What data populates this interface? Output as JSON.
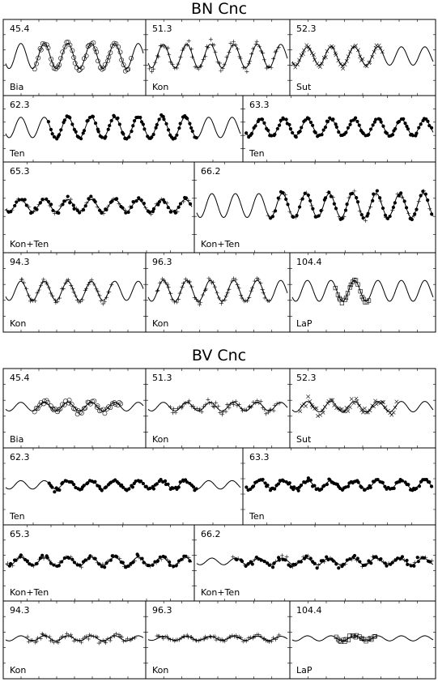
{
  "figures": [
    {
      "title": "BN Cnc",
      "panels": [
        {
          "label": "45.4",
          "observer": "Bia",
          "marker": "circle",
          "start": 0.2,
          "end": 0.92,
          "amp": 0.75,
          "scatter": 0.35
        },
        {
          "label": "51.3",
          "observer": "Kon",
          "marker": "plus",
          "start": 0.0,
          "end": 0.95,
          "amp": 0.7,
          "scatter": 0.45
        },
        {
          "label": "52.3",
          "observer": "Sut",
          "marker": "cross",
          "start": 0.0,
          "end": 0.65,
          "amp": 0.55,
          "scatter": 0.3
        },
        {
          "label": "62.3",
          "observer": "Ten",
          "marker": "dot",
          "start": 0.18,
          "end": 0.82,
          "amp": 0.7,
          "scatter": 0.2
        },
        {
          "label": "63.3",
          "observer": "Ten",
          "marker": "dot",
          "start": 0.0,
          "end": 1.0,
          "amp": 0.55,
          "scatter": 0.2
        },
        {
          "label": "65.3",
          "observer": "Kon+Ten",
          "marker": "mixed",
          "start": 0.0,
          "end": 1.0,
          "amp": 0.3,
          "scatter": 0.25
        },
        {
          "label": "66.2",
          "observer": "Kon+Ten",
          "marker": "mixed",
          "start": 0.3,
          "end": 1.0,
          "amp": 0.6,
          "scatter": 0.25
        },
        {
          "label": "94.3",
          "observer": "Kon",
          "marker": "plus",
          "start": 0.1,
          "end": 0.78,
          "amp": 0.55,
          "scatter": 0.25
        },
        {
          "label": "96.3",
          "observer": "Kon",
          "marker": "plus",
          "start": 0.05,
          "end": 0.88,
          "amp": 0.6,
          "scatter": 0.3
        },
        {
          "label": "104.4",
          "observer": "LaP",
          "marker": "square",
          "start": 0.3,
          "end": 0.55,
          "amp": 0.6,
          "scatter": 0.15
        }
      ]
    },
    {
      "title": "BV Cnc",
      "panels": [
        {
          "label": "45.4",
          "observer": "Bia",
          "marker": "circle",
          "start": 0.2,
          "end": 0.85,
          "amp": 0.25,
          "scatter": 0.4
        },
        {
          "label": "51.3",
          "observer": "Kon",
          "marker": "plus",
          "start": 0.15,
          "end": 0.95,
          "amp": 0.25,
          "scatter": 0.45
        },
        {
          "label": "52.3",
          "observer": "Sut",
          "marker": "cross",
          "start": 0.05,
          "end": 0.75,
          "amp": 0.3,
          "scatter": 0.5
        },
        {
          "label": "62.3",
          "observer": "Ten",
          "marker": "dot",
          "start": 0.18,
          "end": 0.82,
          "amp": 0.25,
          "scatter": 0.25
        },
        {
          "label": "63.3",
          "observer": "Ten",
          "marker": "dot",
          "start": 0.0,
          "end": 1.0,
          "amp": 0.25,
          "scatter": 0.25
        },
        {
          "label": "65.3",
          "observer": "Kon+Ten",
          "marker": "mixed",
          "start": 0.0,
          "end": 1.0,
          "amp": 0.25,
          "scatter": 0.3
        },
        {
          "label": "66.2",
          "observer": "Kon+Ten",
          "marker": "mixed",
          "start": 0.15,
          "end": 1.0,
          "amp": 0.2,
          "scatter": 0.4
        },
        {
          "label": "94.3",
          "observer": "Kon",
          "marker": "plus",
          "start": 0.15,
          "end": 0.95,
          "amp": 0.15,
          "scatter": 0.35
        },
        {
          "label": "96.3",
          "observer": "Kon",
          "marker": "plus",
          "start": 0.05,
          "end": 0.95,
          "amp": 0.12,
          "scatter": 0.25
        },
        {
          "label": "104.4",
          "observer": "LaP",
          "marker": "square",
          "start": 0.3,
          "end": 0.6,
          "amp": 0.15,
          "scatter": 0.25
        }
      ]
    }
  ],
  "chart_data": [
    {
      "type": "scatter",
      "title": "BN Cnc",
      "xlabel": "",
      "ylabel": "",
      "grid": false,
      "series": [
        {
          "marker": "points"
        },
        {
          "marker": "fitted curve"
        }
      ]
    },
    {
      "type": "scatter",
      "title": "BV Cnc",
      "xlabel": "",
      "ylabel": "",
      "grid": false,
      "series": [
        {
          "marker": "points"
        },
        {
          "marker": "fitted curve"
        }
      ]
    }
  ]
}
